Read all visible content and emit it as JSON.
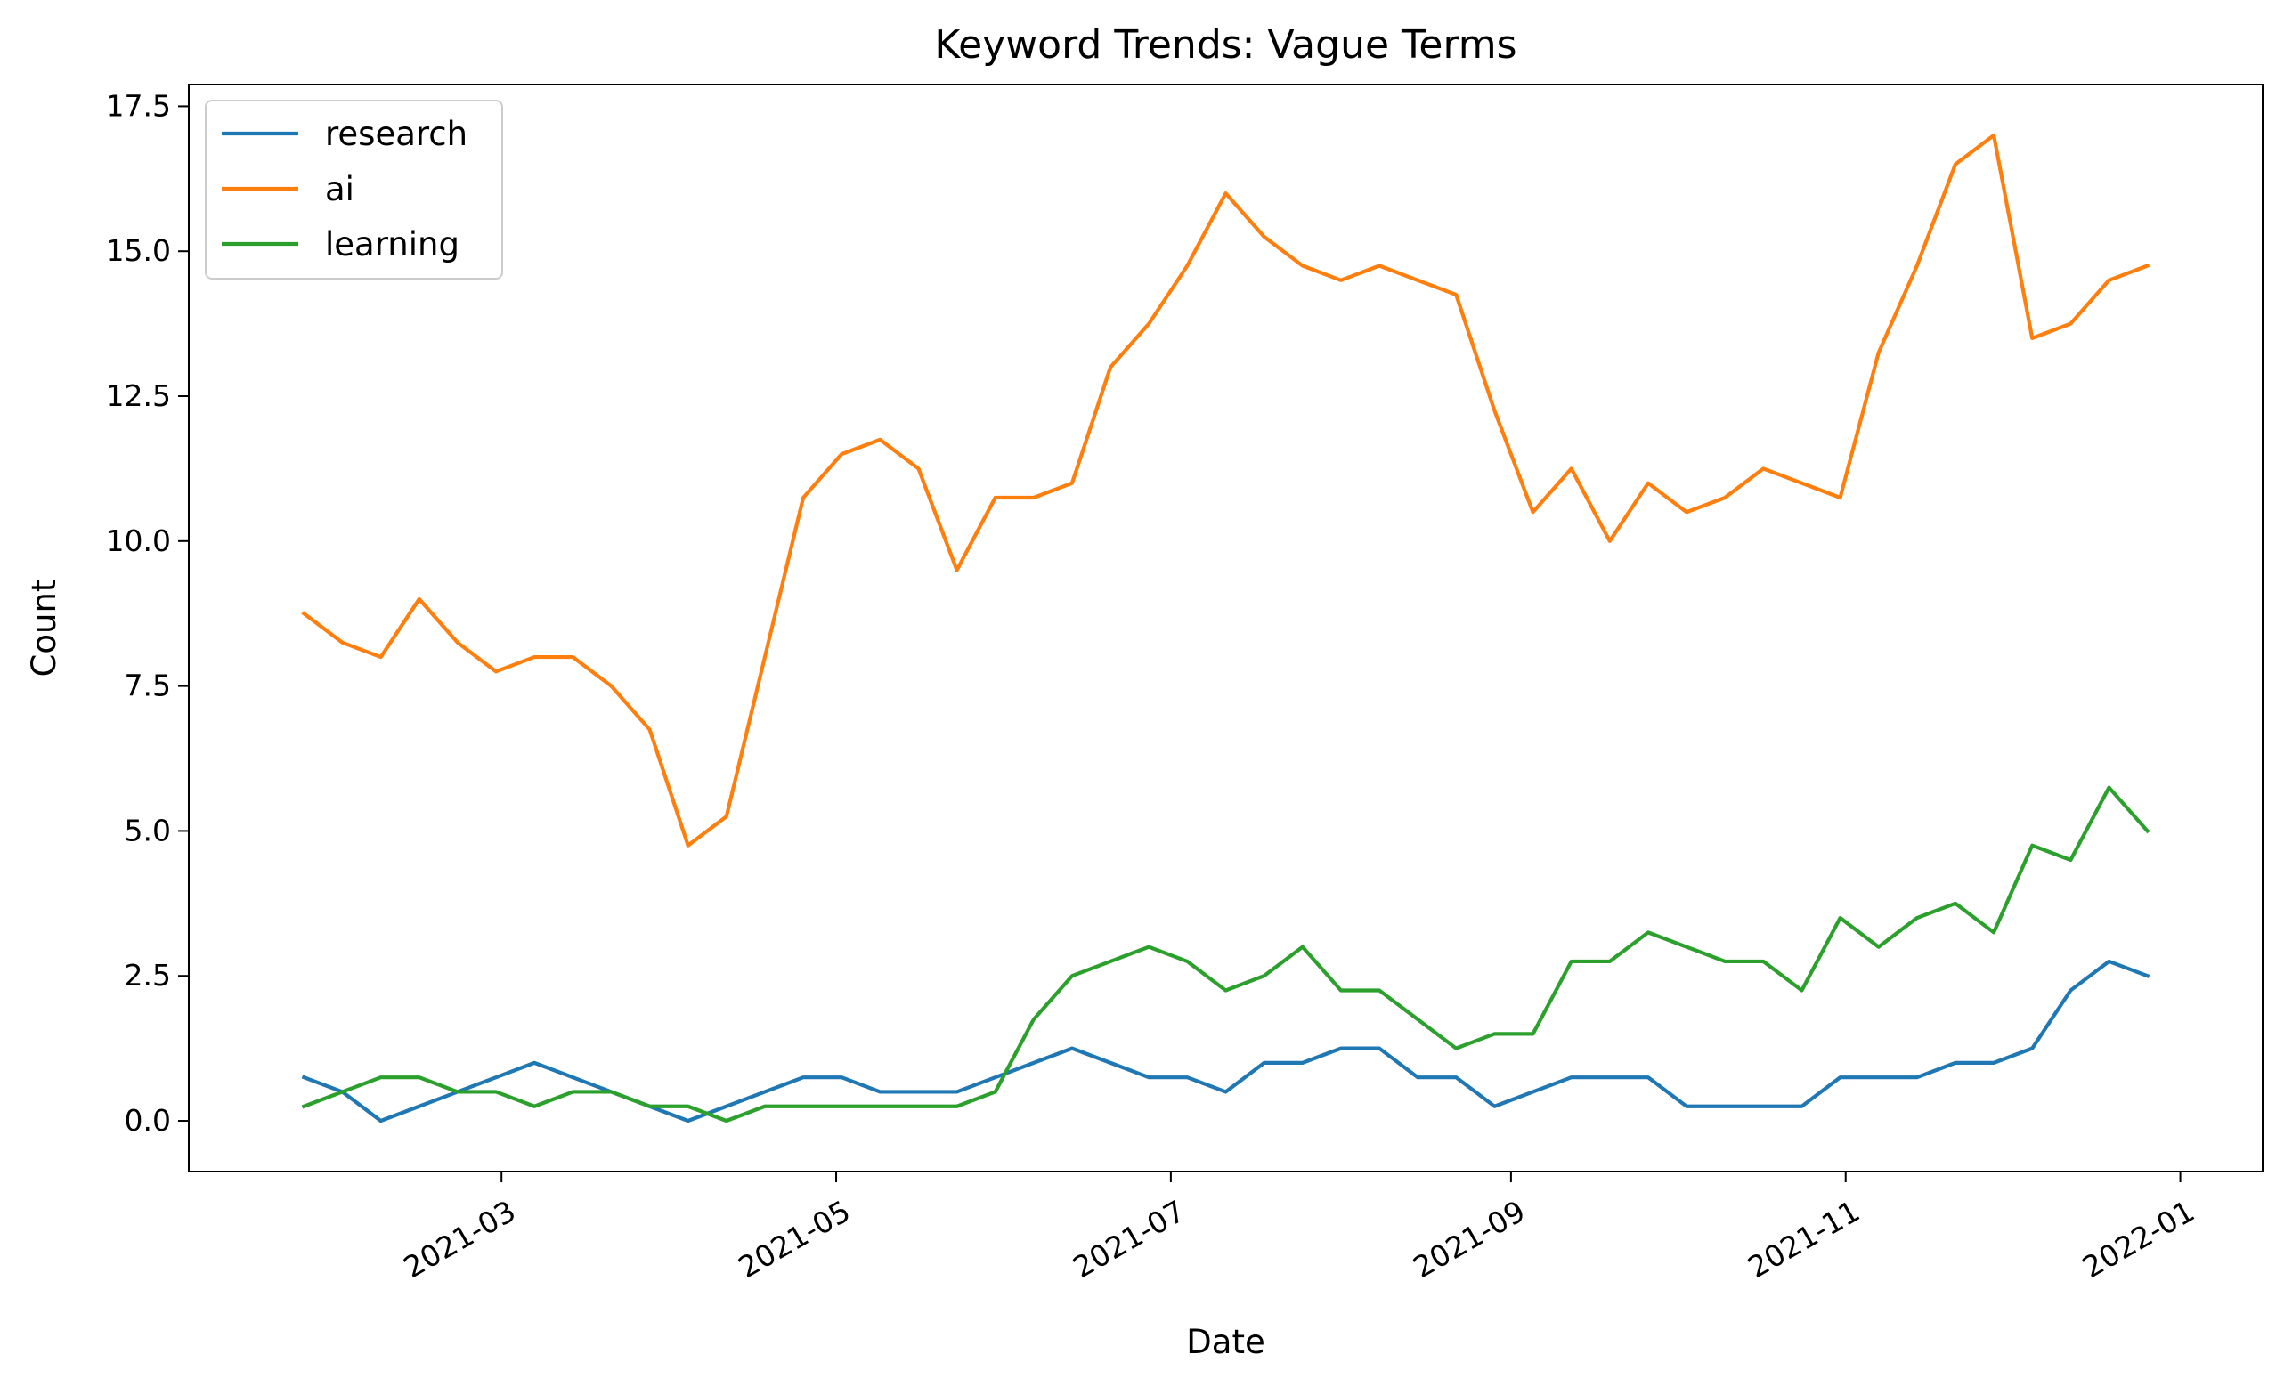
{
  "chart_data": {
    "type": "line",
    "title": "Keyword Trends: Vague Terms",
    "xlabel": "Date",
    "ylabel": "Count",
    "x": [
      "2021-01-24",
      "2021-01-31",
      "2021-02-07",
      "2021-02-14",
      "2021-02-21",
      "2021-02-28",
      "2021-03-07",
      "2021-03-14",
      "2021-03-21",
      "2021-03-28",
      "2021-04-04",
      "2021-04-11",
      "2021-04-18",
      "2021-04-25",
      "2021-05-02",
      "2021-05-09",
      "2021-05-16",
      "2021-05-23",
      "2021-05-30",
      "2021-06-06",
      "2021-06-13",
      "2021-06-20",
      "2021-06-27",
      "2021-07-04",
      "2021-07-11",
      "2021-07-18",
      "2021-07-25",
      "2021-08-01",
      "2021-08-08",
      "2021-08-15",
      "2021-08-22",
      "2021-08-29",
      "2021-09-05",
      "2021-09-12",
      "2021-09-19",
      "2021-09-26",
      "2021-10-03",
      "2021-10-10",
      "2021-10-17",
      "2021-10-24",
      "2021-10-31",
      "2021-11-07",
      "2021-11-14",
      "2021-11-21",
      "2021-11-28",
      "2021-12-05",
      "2021-12-12",
      "2021-12-19",
      "2021-12-26"
    ],
    "series": [
      {
        "name": "research",
        "color": "#1f77b4",
        "values": [
          0.75,
          0.5,
          0.0,
          0.25,
          0.5,
          0.75,
          1.0,
          0.75,
          0.5,
          0.25,
          0.0,
          0.25,
          0.5,
          0.75,
          0.75,
          0.5,
          0.5,
          0.5,
          0.75,
          1.0,
          1.25,
          1.0,
          0.75,
          0.75,
          0.5,
          1.0,
          1.0,
          1.25,
          1.25,
          0.75,
          0.75,
          0.25,
          0.5,
          0.75,
          0.75,
          0.75,
          0.25,
          0.25,
          0.25,
          0.25,
          0.75,
          0.75,
          0.75,
          1.0,
          1.0,
          1.25,
          2.25,
          2.75,
          2.5
        ]
      },
      {
        "name": "ai",
        "color": "#ff7f0e",
        "values": [
          8.75,
          8.25,
          8.0,
          9.0,
          8.25,
          7.75,
          8.0,
          8.0,
          7.5,
          6.75,
          4.75,
          5.25,
          8.0,
          10.75,
          11.5,
          11.75,
          11.25,
          9.5,
          10.75,
          10.75,
          11.0,
          13.0,
          13.75,
          14.75,
          16.0,
          15.25,
          14.75,
          14.5,
          14.75,
          14.5,
          14.25,
          12.25,
          10.5,
          11.25,
          10.0,
          11.0,
          10.5,
          10.75,
          11.25,
          11.0,
          10.75,
          13.25,
          14.75,
          16.5,
          17.0,
          13.5,
          13.75,
          14.5,
          14.75
        ]
      },
      {
        "name": "learning",
        "color": "#2ca02c",
        "values": [
          0.25,
          0.5,
          0.75,
          0.75,
          0.5,
          0.5,
          0.25,
          0.5,
          0.5,
          0.25,
          0.25,
          0.0,
          0.25,
          0.25,
          0.25,
          0.25,
          0.25,
          0.25,
          0.5,
          1.75,
          2.5,
          2.75,
          3.0,
          2.75,
          2.25,
          2.5,
          3.0,
          2.25,
          2.25,
          1.75,
          1.25,
          1.5,
          1.5,
          2.75,
          2.75,
          3.25,
          3.0,
          2.75,
          2.75,
          2.25,
          3.5,
          3.0,
          3.5,
          3.75,
          3.25,
          4.75,
          4.5,
          5.75,
          5.0
        ]
      }
    ],
    "ylim": [
      -0.875,
      17.875
    ],
    "xlim": [
      "2021-01-03",
      "2022-01-16"
    ],
    "yticks": [
      0.0,
      2.5,
      5.0,
      7.5,
      10.0,
      12.5,
      15.0,
      17.5
    ],
    "ytick_labels": [
      "0.0",
      "2.5",
      "5.0",
      "7.5",
      "10.0",
      "12.5",
      "15.0",
      "17.5"
    ],
    "xticks": [
      "2021-03-01",
      "2021-05-01",
      "2021-07-01",
      "2021-09-01",
      "2021-11-01",
      "2022-01-01"
    ],
    "xtick_labels": [
      "2021-03",
      "2021-05",
      "2021-07",
      "2021-09",
      "2021-11",
      "2022-01"
    ],
    "grid": false,
    "legend_position": "top-left"
  }
}
